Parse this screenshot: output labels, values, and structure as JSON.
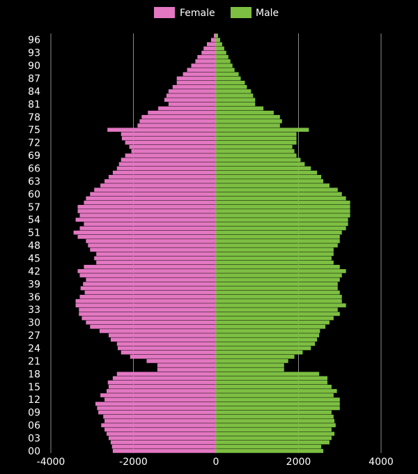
{
  "chart_data": {
    "type": "bar",
    "orientation": "horizontal",
    "categories": [
      "00",
      "01",
      "02",
      "03",
      "04",
      "05",
      "06",
      "07",
      "08",
      "09",
      "10",
      "11",
      "12",
      "13",
      "14",
      "15",
      "16",
      "17",
      "18",
      "19",
      "20",
      "21",
      "22",
      "23",
      "24",
      "25",
      "26",
      "27",
      "28",
      "29",
      "30",
      "31",
      "32",
      "33",
      "34",
      "35",
      "36",
      "37",
      "38",
      "39",
      "40",
      "41",
      "42",
      "43",
      "44",
      "45",
      "46",
      "47",
      "48",
      "49",
      "50",
      "51",
      "52",
      "53",
      "54",
      "55",
      "56",
      "57",
      "58",
      "59",
      "60",
      "61",
      "62",
      "63",
      "64",
      "65",
      "66",
      "67",
      "68",
      "69",
      "70",
      "71",
      "72",
      "73",
      "74",
      "75",
      "76",
      "77",
      "78",
      "79",
      "80",
      "81",
      "82",
      "83",
      "84",
      "85",
      "86",
      "87",
      "88",
      "89",
      "90",
      "91",
      "92",
      "93",
      "94",
      "95",
      "96",
      "97"
    ],
    "y_tick_labels": [
      "00",
      "03",
      "06",
      "09",
      "12",
      "15",
      "18",
      "21",
      "24",
      "27",
      "30",
      "33",
      "36",
      "39",
      "42",
      "45",
      "48",
      "51",
      "54",
      "57",
      "60",
      "63",
      "66",
      "69",
      "72",
      "75",
      "78",
      "81",
      "84",
      "87",
      "90",
      "93",
      "96"
    ],
    "series": [
      {
        "name": "Female",
        "color": "#e377c2",
        "values": [
          -2500,
          -2520,
          -2550,
          -2600,
          -2650,
          -2700,
          -2780,
          -2700,
          -2730,
          -2850,
          -2880,
          -2920,
          -2700,
          -2800,
          -2650,
          -2600,
          -2620,
          -2500,
          -2400,
          -1420,
          -1420,
          -1680,
          -2080,
          -2300,
          -2380,
          -2400,
          -2550,
          -2600,
          -2820,
          -3050,
          -3150,
          -3250,
          -3320,
          -3320,
          -3400,
          -3400,
          -3300,
          -3180,
          -3280,
          -3220,
          -3150,
          -3300,
          -3350,
          -3200,
          -2900,
          -2950,
          -2900,
          -3050,
          -3100,
          -3150,
          -3350,
          -3450,
          -3300,
          -3200,
          -3400,
          -3300,
          -3350,
          -3350,
          -3200,
          -3150,
          -3050,
          -2950,
          -2800,
          -2700,
          -2600,
          -2500,
          -2400,
          -2350,
          -2300,
          -2200,
          -2050,
          -2100,
          -2200,
          -2280,
          -2300,
          -2630,
          -1900,
          -1850,
          -1800,
          -1650,
          -1400,
          -1150,
          -1250,
          -1200,
          -1150,
          -1050,
          -950,
          -950,
          -800,
          -700,
          -600,
          -500,
          -450,
          -350,
          -300,
          -220,
          -120,
          -50
        ]
      },
      {
        "name": "Male",
        "color": "#7dbf42",
        "values": [
          2600,
          2550,
          2750,
          2800,
          2870,
          2800,
          2900,
          2870,
          2850,
          2800,
          3000,
          3000,
          3000,
          2850,
          2930,
          2800,
          2700,
          2700,
          2500,
          1650,
          1650,
          1750,
          1900,
          2100,
          2300,
          2400,
          2450,
          2500,
          2520,
          2650,
          2750,
          2850,
          3000,
          2950,
          3150,
          3050,
          3050,
          3000,
          2950,
          2950,
          3000,
          3050,
          3150,
          3000,
          2850,
          2800,
          2850,
          2850,
          2950,
          3000,
          3000,
          3050,
          3150,
          3200,
          3200,
          3250,
          3250,
          3250,
          3250,
          3150,
          3050,
          2950,
          2750,
          2600,
          2550,
          2450,
          2300,
          2150,
          2050,
          1950,
          1900,
          1850,
          1950,
          1950,
          1950,
          2250,
          1550,
          1600,
          1550,
          1400,
          1150,
          950,
          950,
          900,
          850,
          750,
          700,
          600,
          550,
          450,
          400,
          350,
          300,
          250,
          200,
          150,
          100,
          50
        ]
      }
    ],
    "x_ticks": [
      -4000,
      -2000,
      0,
      2000,
      4000
    ],
    "x_tick_labels": [
      "-4000",
      "-2000",
      "0",
      "2000",
      "4000"
    ],
    "xlim": [
      -4200,
      4200
    ],
    "grid": true,
    "legend_position": "top-center",
    "title": "",
    "xlabel": "",
    "ylabel": ""
  }
}
